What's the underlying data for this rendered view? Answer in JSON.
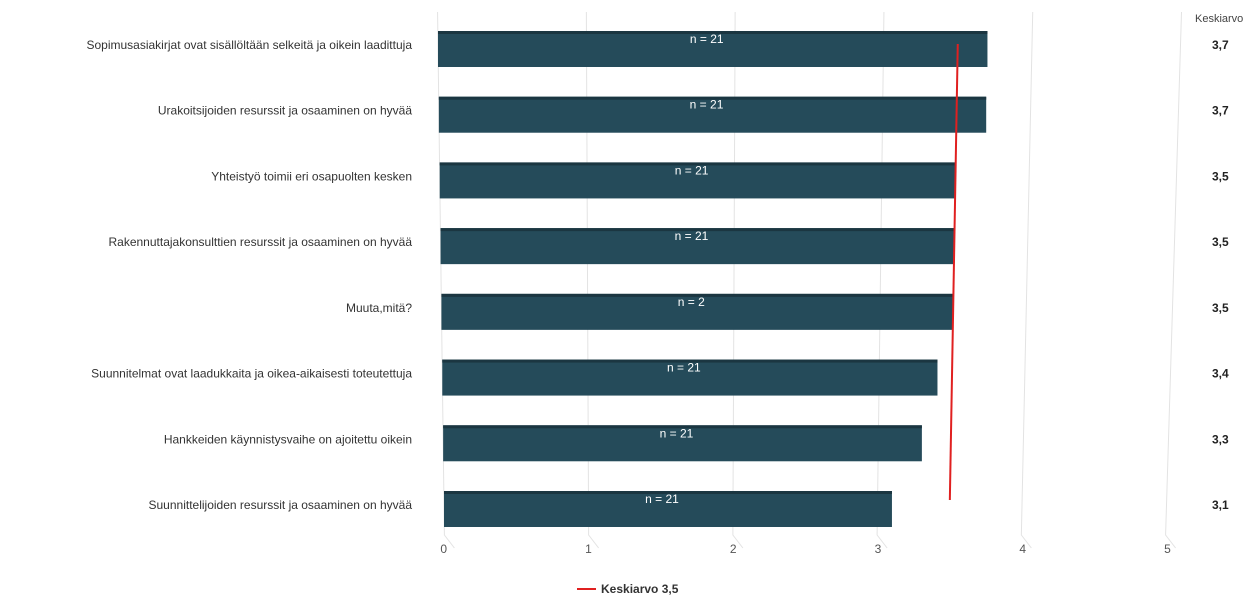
{
  "chart_data": {
    "type": "bar",
    "orientation": "horizontal",
    "categories": [
      "Sopimusasiakirjat ovat sisällöltään selkeitä ja oikein laadittuja",
      "Urakoitsijoiden resurssit ja osaaminen on hyvää",
      "Yhteistyö toimii eri osapuolten kesken",
      "Rakennuttajakonsulttien resurssit ja osaaminen on hyvää",
      "Muuta,mitä?",
      "Suunnitelmat ovat laadukkaita ja oikea-aikaisesti toteutettuja",
      "Hankkeiden käynnistysvaihe on ajoitettu oikein",
      "Suunnittelijoiden resurssit ja osaaminen on hyvää"
    ],
    "values": [
      3.7,
      3.7,
      3.5,
      3.5,
      3.5,
      3.4,
      3.3,
      3.1
    ],
    "bar_labels": [
      "n = 21",
      "n = 21",
      "n = 21",
      "n = 21",
      "n = 2",
      "n = 21",
      "n = 21",
      "n = 21"
    ],
    "mean_column_header": "Keskiarvo",
    "mean_labels": [
      "3,7",
      "3,7",
      "3,5",
      "3,5",
      "3,5",
      "3,4",
      "3,3",
      "3,1"
    ],
    "xlim": [
      0,
      5
    ],
    "xticks": [
      "0",
      "1",
      "2",
      "3",
      "4",
      "5"
    ],
    "reference_line": {
      "value": 3.5,
      "label": "Keskiarvo 3,5",
      "color": "#e02020"
    },
    "bar_color": "#254b5a",
    "grid": true,
    "legend_position": "bottom-center"
  }
}
